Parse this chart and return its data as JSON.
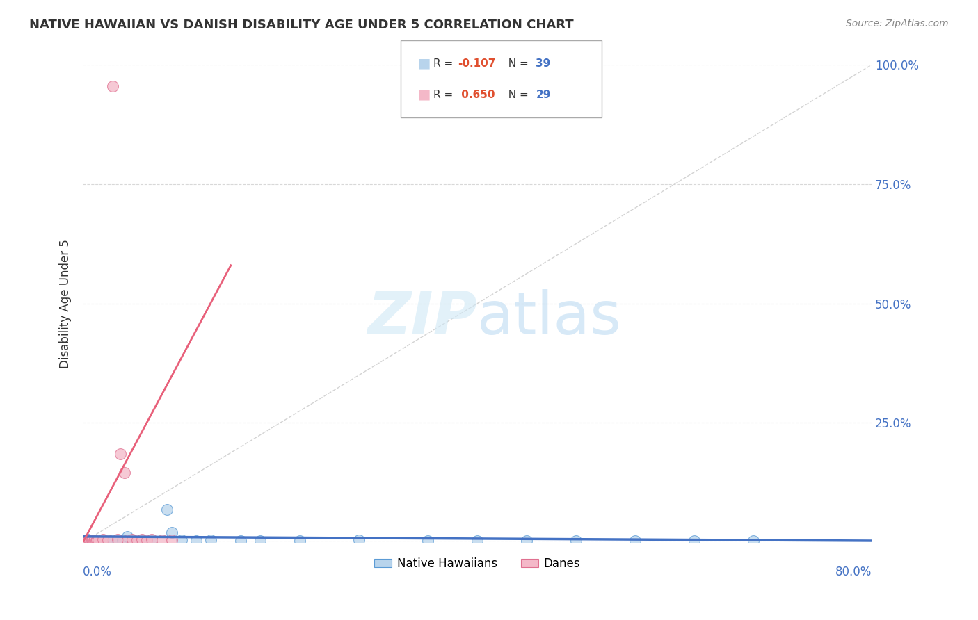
{
  "title": "NATIVE HAWAIIAN VS DANISH DISABILITY AGE UNDER 5 CORRELATION CHART",
  "source": "Source: ZipAtlas.com",
  "ylabel": "Disability Age Under 5",
  "ytick_vals": [
    0.0,
    0.25,
    0.5,
    0.75,
    1.0
  ],
  "ytick_labels": [
    "",
    "25.0%",
    "50.0%",
    "75.0%",
    "100.0%"
  ],
  "xlim": [
    0.0,
    0.8
  ],
  "ylim": [
    0.0,
    1.0
  ],
  "color_hawaiian_fill": "#b8d4ec",
  "color_hawaiian_edge": "#5b9bd5",
  "color_danish_fill": "#f4b8c8",
  "color_danish_edge": "#e07090",
  "color_trendline_hawaiian": "#4472c4",
  "color_trendline_danish": "#e8607a",
  "color_diagonal": "#c8c8c8",
  "background_color": "#ffffff",
  "grid_color": "#d8d8d8",
  "legend_box_color": "#888888",
  "r_color": "#e05030",
  "n_color": "#4472c4",
  "watermark_color": "#d0e8f5",
  "title_color": "#333333",
  "source_color": "#888888",
  "label_color": "#4472c4",
  "nh_x": [
    0.001,
    0.002,
    0.003,
    0.004,
    0.005,
    0.006,
    0.007,
    0.008,
    0.009,
    0.01,
    0.011,
    0.012,
    0.013,
    0.014,
    0.015,
    0.025,
    0.03,
    0.035,
    0.04,
    0.05,
    0.06,
    0.07,
    0.085,
    0.1,
    0.115,
    0.13,
    0.18,
    0.22,
    0.28,
    0.35,
    0.4,
    0.45,
    0.5,
    0.56,
    0.62,
    0.68,
    0.09,
    0.16,
    0.045
  ],
  "nh_y": [
    0.005,
    0.003,
    0.004,
    0.002,
    0.006,
    0.003,
    0.004,
    0.005,
    0.003,
    0.004,
    0.003,
    0.004,
    0.003,
    0.005,
    0.004,
    0.005,
    0.004,
    0.003,
    0.005,
    0.004,
    0.003,
    0.004,
    0.068,
    0.004,
    0.003,
    0.004,
    0.003,
    0.003,
    0.004,
    0.003,
    0.003,
    0.003,
    0.003,
    0.003,
    0.003,
    0.003,
    0.02,
    0.003,
    0.012
  ],
  "dk_x": [
    0.001,
    0.002,
    0.003,
    0.004,
    0.005,
    0.006,
    0.007,
    0.008,
    0.009,
    0.01,
    0.011,
    0.012,
    0.013,
    0.014,
    0.015,
    0.02,
    0.025,
    0.03,
    0.035,
    0.038,
    0.042,
    0.045,
    0.05,
    0.055,
    0.06,
    0.065,
    0.07,
    0.08,
    0.09
  ],
  "dk_y": [
    0.004,
    0.003,
    0.005,
    0.004,
    0.003,
    0.004,
    0.005,
    0.003,
    0.004,
    0.005,
    0.003,
    0.004,
    0.003,
    0.005,
    0.004,
    0.006,
    0.005,
    0.955,
    0.006,
    0.185,
    0.145,
    0.005,
    0.006,
    0.005,
    0.006,
    0.005,
    0.006,
    0.005,
    0.005
  ],
  "nh_trend_x": [
    0.0,
    0.8
  ],
  "nh_trend_y": [
    0.012,
    0.003
  ],
  "dk_trend_x": [
    0.0,
    0.15
  ],
  "dk_trend_y": [
    0.0,
    0.58
  ]
}
